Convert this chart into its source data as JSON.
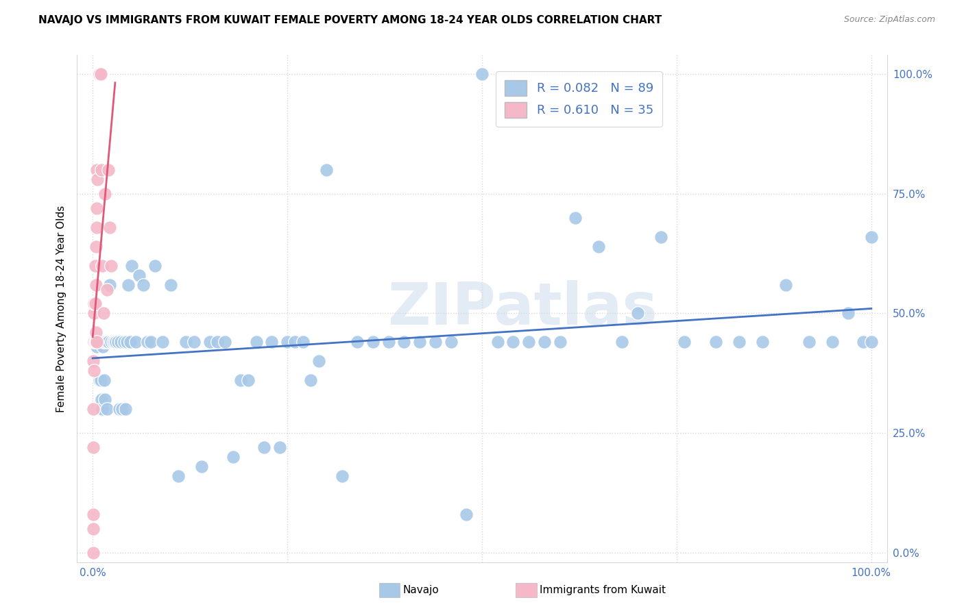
{
  "title": "NAVAJO VS IMMIGRANTS FROM KUWAIT FEMALE POVERTY AMONG 18-24 YEAR OLDS CORRELATION CHART",
  "source": "Source: ZipAtlas.com",
  "ylabel": "Female Poverty Among 18-24 Year Olds",
  "legend_navajo": "Navajo",
  "legend_kuwait": "Immigrants from Kuwait",
  "navajo_color": "#a8c8e8",
  "kuwait_color": "#f4b8c8",
  "trendline_navajo_color": "#4472c4",
  "trendline_kuwait_color": "#e05878",
  "watermark": "ZIPatlas",
  "navajo_x": [
    0.005,
    0.007,
    0.008,
    0.009,
    0.01,
    0.011,
    0.012,
    0.013,
    0.014,
    0.015,
    0.016,
    0.017,
    0.018,
    0.019,
    0.02,
    0.022,
    0.024,
    0.026,
    0.028,
    0.03,
    0.032,
    0.034,
    0.036,
    0.038,
    0.04,
    0.042,
    0.044,
    0.046,
    0.048,
    0.05,
    0.055,
    0.06,
    0.065,
    0.07,
    0.075,
    0.08,
    0.09,
    0.1,
    0.11,
    0.12,
    0.13,
    0.14,
    0.15,
    0.16,
    0.17,
    0.18,
    0.19,
    0.2,
    0.21,
    0.22,
    0.23,
    0.24,
    0.25,
    0.26,
    0.27,
    0.28,
    0.29,
    0.3,
    0.32,
    0.34,
    0.36,
    0.38,
    0.4,
    0.42,
    0.44,
    0.46,
    0.48,
    0.5,
    0.52,
    0.54,
    0.56,
    0.58,
    0.6,
    0.62,
    0.65,
    0.68,
    0.7,
    0.73,
    0.76,
    0.8,
    0.83,
    0.86,
    0.89,
    0.92,
    0.95,
    0.97,
    0.99,
    1.0,
    1.0
  ],
  "navajo_y": [
    0.43,
    0.44,
    0.44,
    0.36,
    0.36,
    0.32,
    0.3,
    0.43,
    0.44,
    0.36,
    0.32,
    0.44,
    0.3,
    0.44,
    0.44,
    0.56,
    0.44,
    0.44,
    0.44,
    0.44,
    0.44,
    0.3,
    0.44,
    0.3,
    0.44,
    0.3,
    0.44,
    0.56,
    0.44,
    0.6,
    0.44,
    0.58,
    0.56,
    0.44,
    0.44,
    0.6,
    0.44,
    0.56,
    0.16,
    0.44,
    0.44,
    0.18,
    0.44,
    0.44,
    0.44,
    0.2,
    0.36,
    0.36,
    0.44,
    0.22,
    0.44,
    0.22,
    0.44,
    0.44,
    0.44,
    0.36,
    0.4,
    0.8,
    0.16,
    0.44,
    0.44,
    0.44,
    0.44,
    0.44,
    0.44,
    0.44,
    0.08,
    1.0,
    0.44,
    0.44,
    0.44,
    0.44,
    0.44,
    0.7,
    0.64,
    0.44,
    0.5,
    0.66,
    0.44,
    0.44,
    0.44,
    0.44,
    0.56,
    0.44,
    0.44,
    0.5,
    0.44,
    0.44,
    0.66
  ],
  "kuwait_x": [
    0.001,
    0.001,
    0.001,
    0.001,
    0.001,
    0.001,
    0.002,
    0.002,
    0.002,
    0.002,
    0.003,
    0.003,
    0.003,
    0.004,
    0.004,
    0.004,
    0.004,
    0.005,
    0.005,
    0.005,
    0.005,
    0.006,
    0.006,
    0.007,
    0.008,
    0.009,
    0.01,
    0.011,
    0.012,
    0.014,
    0.016,
    0.018,
    0.02,
    0.022,
    0.024
  ],
  "kuwait_y": [
    0.0,
    0.05,
    0.08,
    0.22,
    0.3,
    0.4,
    0.38,
    0.44,
    0.5,
    0.52,
    0.44,
    0.52,
    0.6,
    0.44,
    0.46,
    0.56,
    0.64,
    0.44,
    0.68,
    0.72,
    0.8,
    0.78,
    1.0,
    1.0,
    1.0,
    1.0,
    1.0,
    0.8,
    0.6,
    0.5,
    0.75,
    0.55,
    0.8,
    0.68,
    0.6
  ],
  "xlim": [
    0.0,
    1.0
  ],
  "ylim": [
    0.0,
    1.0
  ],
  "yticks": [
    0.0,
    0.25,
    0.5,
    0.75,
    1.0
  ],
  "ytick_labels": [
    "0.0%",
    "25.0%",
    "50.0%",
    "75.0%",
    "100.0%"
  ],
  "xticks_minor": [
    0.0,
    0.25,
    0.5,
    0.75,
    1.0
  ],
  "grid_color": "#d8d8d8",
  "title_fontsize": 11,
  "axis_label_fontsize": 11,
  "tick_fontsize": 11
}
